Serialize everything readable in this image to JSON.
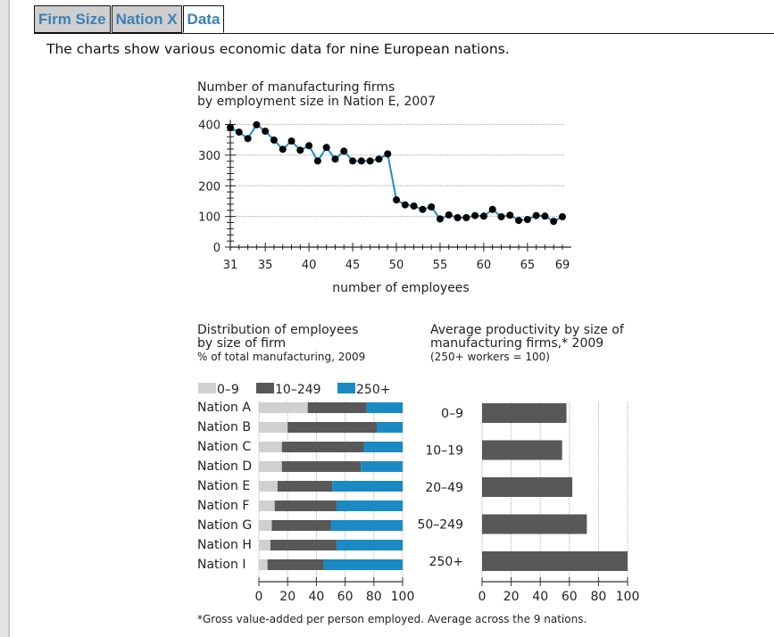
{
  "tabs": [
    {
      "label": "Firm Size",
      "active": false
    },
    {
      "label": "Nation X",
      "active": false
    },
    {
      "label": "Data",
      "active": true
    }
  ],
  "intro": "The charts show various economic data for nine European nations.",
  "colors": {
    "line": "#1d8fc9",
    "point": "#000000",
    "small": "#d0d0d0",
    "medium": "#585858",
    "large": "#1a8ac4",
    "productivity": "#585858",
    "tab_text": "#3a80b6"
  },
  "chart_data": [
    {
      "type": "line",
      "title_line1": "Number of manufacturing firms",
      "title_line2": "by employment size in Nation E, 2007",
      "xlabel": "number of employees",
      "ylabel": "",
      "xlim": [
        31,
        69
      ],
      "ylim": [
        0,
        400
      ],
      "xticks": [
        31,
        35,
        40,
        45,
        50,
        55,
        60,
        65,
        69
      ],
      "yticks": [
        0,
        100,
        200,
        300,
        400
      ],
      "grid": true,
      "x": [
        31,
        32,
        33,
        34,
        35,
        36,
        37,
        38,
        39,
        40,
        41,
        42,
        43,
        44,
        45,
        46,
        47,
        48,
        49,
        50,
        51,
        52,
        53,
        54,
        55,
        56,
        57,
        58,
        59,
        60,
        61,
        62,
        63,
        64,
        65,
        66,
        67,
        68,
        69
      ],
      "values": [
        390,
        375,
        354,
        399,
        378,
        349,
        319,
        346,
        316,
        331,
        281,
        325,
        287,
        313,
        281,
        281,
        281,
        287,
        304,
        154,
        138,
        134,
        123,
        131,
        92,
        105,
        96,
        96,
        103,
        101,
        123,
        99,
        104,
        87,
        90,
        103,
        101,
        84,
        99
      ]
    },
    {
      "type": "bar",
      "stacked": true,
      "orientation": "horizontal",
      "title_line1": "Distribution of employees",
      "title_line2": "by size of firm",
      "subtitle": "% of total manufacturing, 2009",
      "xlim": [
        0,
        100
      ],
      "xticks": [
        0,
        20,
        40,
        60,
        80,
        100
      ],
      "legend": [
        "0–9",
        "10–249",
        "250+"
      ],
      "legend_position": "top-left",
      "categories": [
        "Nation A",
        "Nation B",
        "Nation C",
        "Nation D",
        "Nation E",
        "Nation F",
        "Nation G",
        "Nation H",
        "Nation I"
      ],
      "series": [
        {
          "name": "0–9",
          "values": [
            34,
            20,
            16,
            16,
            13,
            11,
            9,
            8,
            6
          ]
        },
        {
          "name": "10–249",
          "values": [
            41,
            62,
            57,
            55,
            38,
            43,
            41,
            46,
            39
          ]
        },
        {
          "name": "250+",
          "values": [
            25,
            18,
            27,
            29,
            49,
            46,
            50,
            46,
            55
          ]
        }
      ]
    },
    {
      "type": "bar",
      "orientation": "horizontal",
      "title_line1": "Average productivity by size of",
      "title_line2": "manufacturing firms,* 2009",
      "subtitle": "(250+ workers = 100)",
      "xlim": [
        0,
        100
      ],
      "xticks": [
        0,
        20,
        40,
        60,
        80,
        100
      ],
      "categories": [
        "0–9",
        "10–19",
        "20–49",
        "50–249",
        "250+"
      ],
      "values": [
        58,
        55,
        62,
        72,
        100
      ],
      "footnote": "*Gross value-added per person employed. Average across the 9 nations."
    }
  ]
}
